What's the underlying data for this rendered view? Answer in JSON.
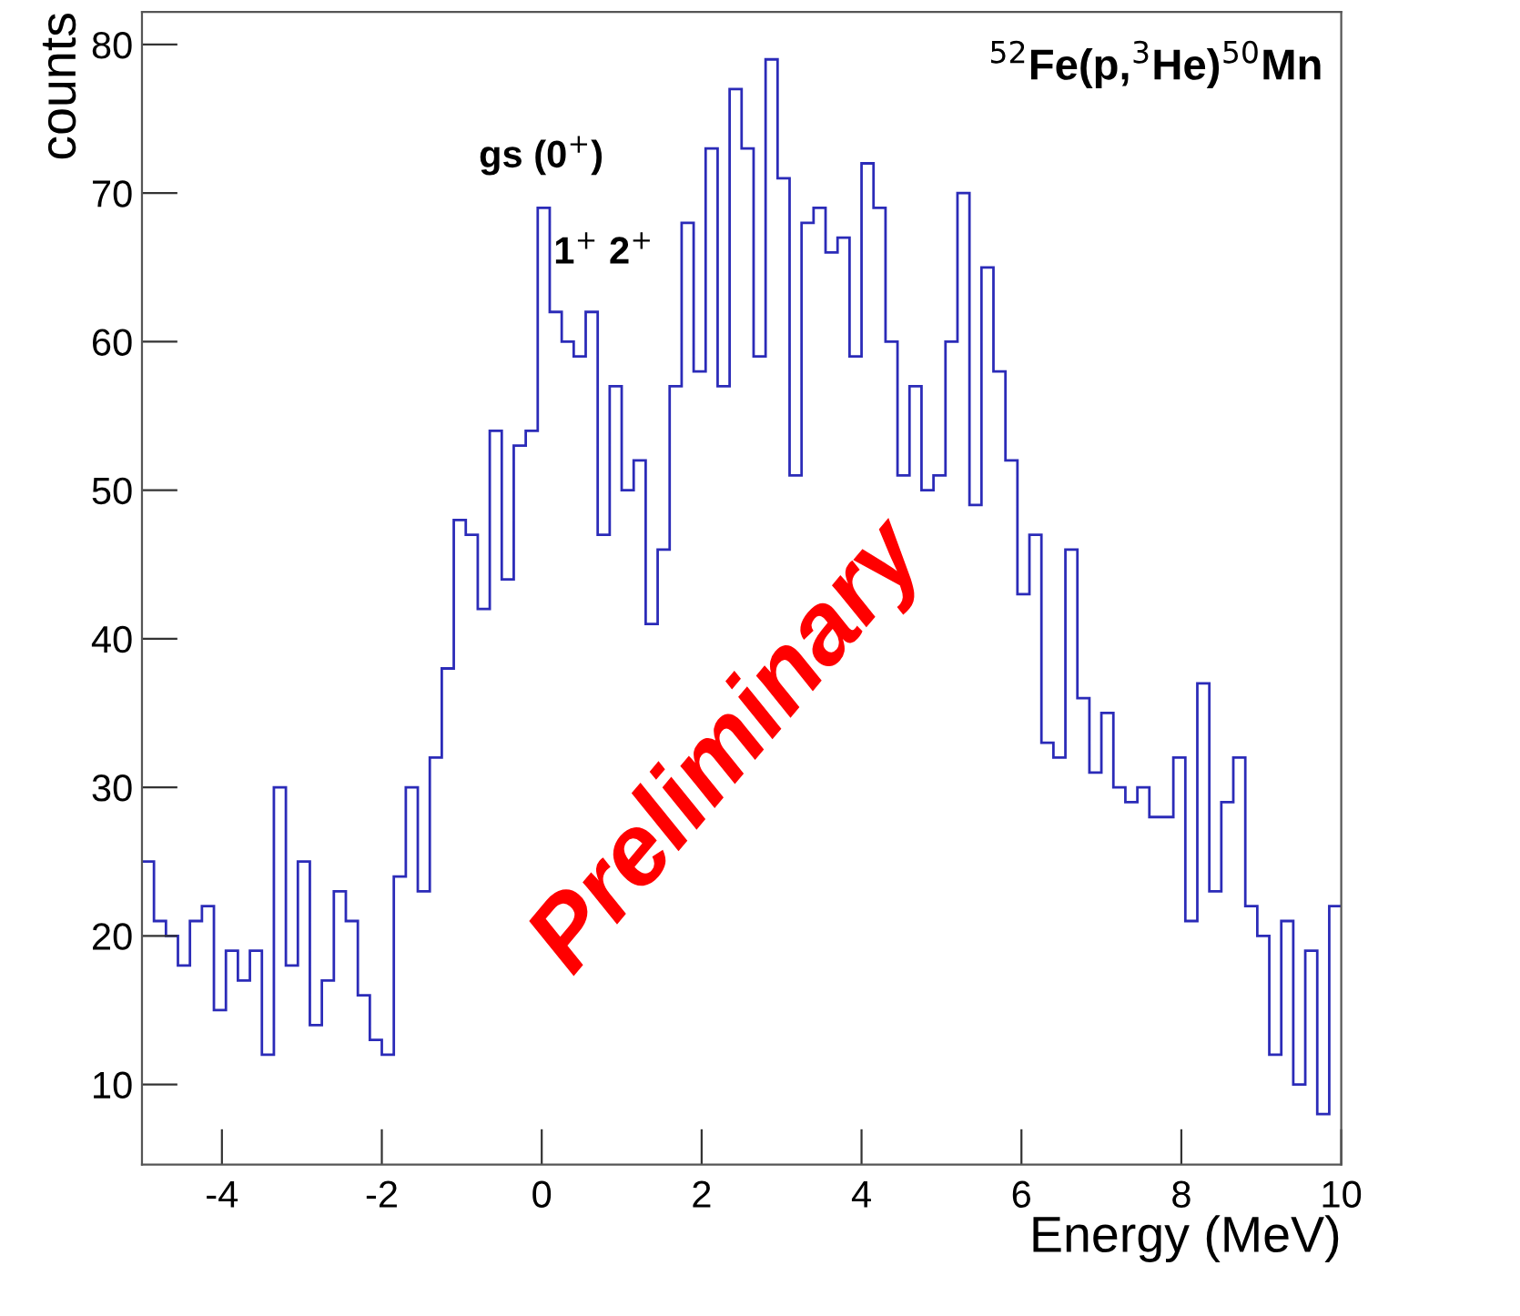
{
  "chart_data": {
    "type": "histogram",
    "title": "$^{52}$Fe(p,$^{3}$He)$^{50}$Mn",
    "xlabel": "Energy (MeV)",
    "ylabel": "counts",
    "bins": [
      -5,
      -4.85,
      -4.7,
      -4.55,
      -4.4,
      -4.25,
      -4.1,
      -3.95,
      -3.8,
      -3.65,
      -3.5,
      -3.35,
      -3.2,
      -3.05,
      -2.9,
      -2.75,
      -2.6,
      -2.45,
      -2.3,
      -2.15,
      -2,
      -1.85,
      -1.7,
      -1.55,
      -1.4,
      -1.25,
      -1.1,
      -0.95,
      -0.8,
      -0.65,
      -0.5,
      -0.35,
      -0.2,
      -0.05,
      0.1,
      0.25,
      0.4,
      0.55,
      0.7,
      0.85,
      1,
      1.15,
      1.3,
      1.45,
      1.6,
      1.75,
      1.9,
      2.05,
      2.2,
      2.35,
      2.5,
      2.65,
      2.8,
      2.95,
      3.1,
      3.25,
      3.4,
      3.55,
      3.7,
      3.85,
      4,
      4.15,
      4.3,
      4.45,
      4.6,
      4.75,
      4.9,
      5.05,
      5.2,
      5.35,
      5.5,
      5.65,
      5.8,
      5.95,
      6.1,
      6.25,
      6.4,
      6.55,
      6.7,
      6.85,
      7,
      7.15,
      7.3,
      7.45,
      7.6,
      7.75,
      7.9,
      8.05,
      8.2,
      8.35,
      8.5,
      8.65,
      8.8,
      8.95,
      9.1,
      9.25,
      9.4,
      9.55,
      9.7,
      9.85,
      10
    ],
    "values": [
      25,
      21,
      20,
      18,
      21,
      22,
      15,
      19,
      17,
      19,
      12,
      30,
      18,
      25,
      14,
      17,
      23,
      21,
      16,
      13,
      12,
      24,
      30,
      23,
      32,
      38,
      48,
      47,
      42,
      54,
      44,
      53,
      54,
      69,
      62,
      60,
      59,
      62,
      47,
      57,
      50,
      52,
      41,
      46,
      57,
      68,
      58,
      73,
      57,
      77,
      73,
      59,
      79,
      71,
      51,
      68,
      69,
      66,
      67,
      59,
      72,
      69,
      60,
      51,
      57,
      50,
      51,
      60,
      70,
      49,
      65,
      58,
      52,
      43,
      47,
      33,
      32,
      46,
      36,
      31,
      35,
      30,
      29,
      30,
      28,
      28,
      32,
      21,
      37,
      23,
      29,
      32,
      22,
      20,
      12,
      21,
      10,
      19,
      8,
      22
    ],
    "color": "#2b2bb8",
    "xlim": [
      -5,
      10
    ],
    "ylim": [
      4.6,
      82.2
    ],
    "xticks": [
      -4,
      -2,
      0,
      2,
      4,
      6,
      8,
      10
    ],
    "yticks": [
      10,
      20,
      30,
      40,
      50,
      60,
      70,
      80
    ],
    "annotations": [
      "gs (0$^{+}$)",
      "1$^{+}$ 2$^{+}$",
      "Preliminary"
    ]
  }
}
